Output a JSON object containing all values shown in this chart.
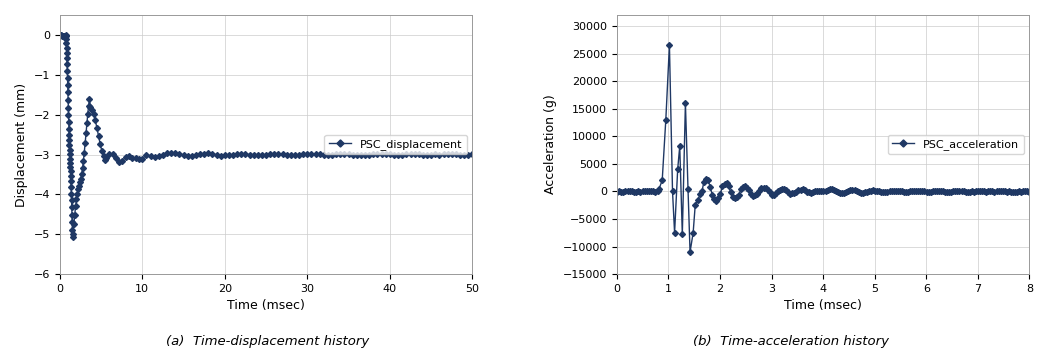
{
  "line_color": "#1F3864",
  "marker_style": "D",
  "marker_size": 3,
  "linewidth": 1.0,
  "disp_xlim": [
    0,
    50
  ],
  "disp_ylim": [
    -6,
    0.5
  ],
  "disp_yticks": [
    0,
    -1,
    -2,
    -3,
    -4,
    -5,
    -6
  ],
  "disp_xticks": [
    0,
    10,
    20,
    30,
    40,
    50
  ],
  "disp_xlabel": "Time (msec)",
  "disp_ylabel": "Displacement (mm)",
  "disp_legend": "PSC_displacement",
  "acc_xlim": [
    0,
    8
  ],
  "acc_ylim": [
    -15000,
    32000
  ],
  "acc_yticks": [
    -15000,
    -10000,
    -5000,
    0,
    5000,
    10000,
    15000,
    20000,
    25000,
    30000
  ],
  "acc_xticks": [
    0,
    1,
    2,
    3,
    4,
    5,
    6,
    7,
    8
  ],
  "acc_xlabel": "Time (msec)",
  "acc_ylabel": "Acceleration (g)",
  "acc_legend": "PSC_acceleration",
  "caption_a": "(a)  Time-displacement history",
  "caption_b": "(b)  Time-acceleration history",
  "background_color": "#ffffff",
  "grid_color": "#cccccc"
}
